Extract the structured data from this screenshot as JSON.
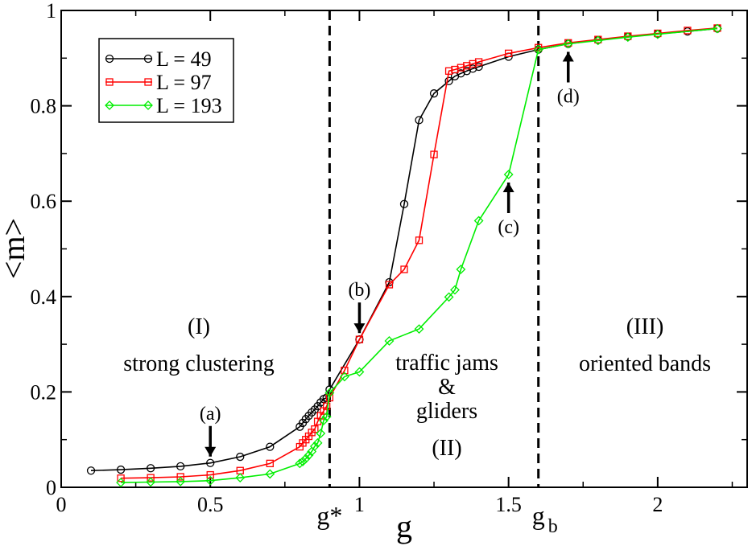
{
  "chart_data": {
    "type": "line",
    "xlabel": "g",
    "ylabel": "<m>",
    "xlim": [
      0,
      2.3
    ],
    "ylim": [
      0,
      1
    ],
    "x_ticks": [
      {
        "value": 0,
        "label": "0"
      },
      {
        "value": 0.5,
        "label": "0.5"
      },
      {
        "value": 1,
        "label": "1"
      },
      {
        "value": 1.5,
        "label": "1.5"
      },
      {
        "value": 2,
        "label": "2"
      }
    ],
    "y_ticks": [
      {
        "value": 0,
        "label": "0"
      },
      {
        "value": 0.2,
        "label": "0.2"
      },
      {
        "value": 0.4,
        "label": "0.4"
      },
      {
        "value": 0.6,
        "label": "0.6"
      },
      {
        "value": 0.8,
        "label": "0.8"
      },
      {
        "value": 1,
        "label": "1"
      }
    ],
    "vlines": [
      {
        "x": 0.9,
        "label_main": "g*",
        "label_sub": ""
      },
      {
        "x": 1.6,
        "label_main": "g",
        "label_sub": "b"
      }
    ],
    "series": [
      {
        "name": "L = 49",
        "color": "#000000",
        "marker": "circle",
        "x": [
          0.1,
          0.2,
          0.3,
          0.4,
          0.5,
          0.6,
          0.7,
          0.8,
          0.81,
          0.82,
          0.83,
          0.84,
          0.85,
          0.86,
          0.87,
          0.88,
          0.89,
          0.9,
          1.0,
          1.1,
          1.15,
          1.2,
          1.25,
          1.3,
          1.32,
          1.34,
          1.36,
          1.38,
          1.4,
          1.5,
          1.6,
          1.7,
          1.8,
          1.9,
          2.0,
          2.1,
          2.2
        ],
        "y": [
          0.035,
          0.037,
          0.04,
          0.044,
          0.051,
          0.064,
          0.085,
          0.127,
          0.135,
          0.143,
          0.15,
          0.157,
          0.163,
          0.17,
          0.178,
          0.185,
          0.188,
          0.205,
          0.31,
          0.43,
          0.594,
          0.77,
          0.826,
          0.852,
          0.862,
          0.868,
          0.873,
          0.878,
          0.882,
          0.903,
          0.918,
          0.93,
          0.938,
          0.945,
          0.951,
          0.956,
          0.962
        ]
      },
      {
        "name": "L = 97",
        "color": "#ff0000",
        "marker": "square",
        "x": [
          0.2,
          0.3,
          0.4,
          0.5,
          0.6,
          0.7,
          0.8,
          0.81,
          0.82,
          0.83,
          0.84,
          0.85,
          0.86,
          0.87,
          0.88,
          0.89,
          0.9,
          0.95,
          1.0,
          1.1,
          1.15,
          1.2,
          1.25,
          1.3,
          1.32,
          1.34,
          1.36,
          1.38,
          1.4,
          1.5,
          1.6,
          1.7,
          1.8,
          1.9,
          2.0,
          2.1,
          2.2
        ],
        "y": [
          0.019,
          0.02,
          0.022,
          0.026,
          0.035,
          0.05,
          0.085,
          0.093,
          0.1,
          0.107,
          0.115,
          0.122,
          0.138,
          0.15,
          0.16,
          0.17,
          0.188,
          0.245,
          0.31,
          0.425,
          0.457,
          0.518,
          0.698,
          0.873,
          0.876,
          0.88,
          0.884,
          0.888,
          0.892,
          0.91,
          0.922,
          0.932,
          0.939,
          0.946,
          0.952,
          0.958,
          0.963
        ]
      },
      {
        "name": "L = 193",
        "color": "#00ee00",
        "marker": "diamond",
        "x": [
          0.2,
          0.3,
          0.4,
          0.5,
          0.6,
          0.7,
          0.8,
          0.81,
          0.82,
          0.83,
          0.84,
          0.85,
          0.86,
          0.87,
          0.88,
          0.89,
          0.9,
          0.95,
          1.0,
          1.1,
          1.2,
          1.3,
          1.32,
          1.34,
          1.4,
          1.5,
          1.6,
          1.7,
          1.8,
          1.9,
          2.0,
          2.2
        ],
        "y": [
          0.01,
          0.011,
          0.012,
          0.014,
          0.02,
          0.028,
          0.05,
          0.054,
          0.06,
          0.067,
          0.075,
          0.086,
          0.093,
          0.113,
          0.14,
          0.148,
          0.198,
          0.232,
          0.242,
          0.307,
          0.332,
          0.399,
          0.414,
          0.457,
          0.559,
          0.656,
          0.918,
          0.93,
          0.937,
          0.944,
          0.95,
          0.962
        ]
      }
    ],
    "regions": [
      {
        "key": "I",
        "lines": [
          "(I)",
          "strong clustering"
        ]
      },
      {
        "key": "II",
        "lines": [
          "traffic jams",
          "&",
          "gliders",
          "(II)"
        ]
      },
      {
        "key": "III",
        "lines": [
          "(III)",
          "oriented bands"
        ]
      }
    ],
    "arrows": [
      {
        "label": "(a)",
        "x": 0.5,
        "y": 0.051,
        "direction": "down"
      },
      {
        "label": "(b)",
        "x": 1.0,
        "y": 0.31,
        "direction": "down"
      },
      {
        "label": "(c)",
        "x": 1.5,
        "y": 0.656,
        "direction": "up"
      },
      {
        "label": "(d)",
        "x": 1.7,
        "y": 0.93,
        "direction": "up"
      }
    ],
    "legend_position": "top-left"
  }
}
